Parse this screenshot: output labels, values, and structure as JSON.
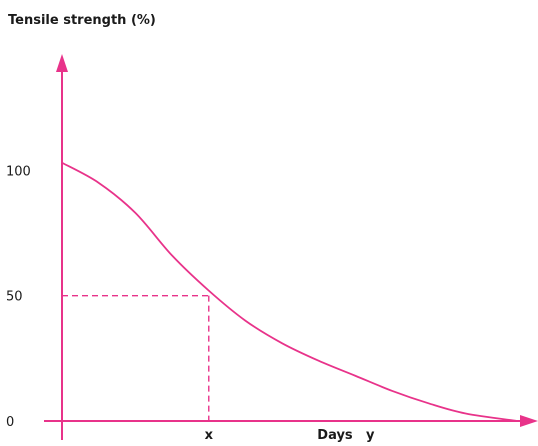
{
  "chart_data": {
    "type": "line",
    "ylabel": "Tensile strength (%)",
    "xlabel": "Days",
    "y_ticks": [
      {
        "value": 100,
        "label": "100"
      },
      {
        "value": 50,
        "label": "50"
      },
      {
        "value": 0,
        "label": "0"
      }
    ],
    "x_ticks": [
      {
        "value": 1,
        "label": "x"
      },
      {
        "value": 2.1,
        "label": "y"
      }
    ],
    "xlim": [
      0,
      3.1
    ],
    "ylim": [
      0,
      140
    ],
    "grid": false,
    "series": [
      {
        "x": [
          0,
          0.25,
          0.5,
          0.75,
          1.0,
          1.25,
          1.5,
          1.75,
          2.0,
          2.25,
          2.5,
          2.75,
          3.1
        ],
        "y": [
          103,
          95,
          83,
          66,
          52,
          40,
          31,
          24,
          18,
          12,
          7,
          3,
          0
        ]
      }
    ],
    "annotations": [
      {
        "type": "dashed-guide",
        "x": 1,
        "y": 50
      }
    ],
    "colors": {
      "line": "#e8338a",
      "axis": "#e8338a",
      "text": "#1a1a1a"
    }
  }
}
